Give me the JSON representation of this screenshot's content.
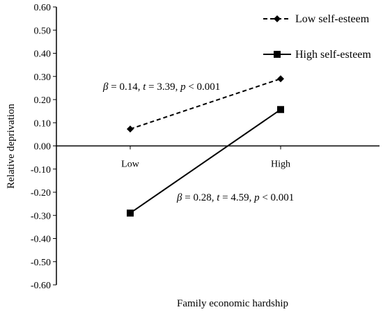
{
  "chart_data": {
    "type": "line",
    "title": "",
    "xlabel": "Family economic hardship",
    "ylabel": "Relative deprivation",
    "categories": [
      "Low",
      "High"
    ],
    "ylim": [
      -0.6,
      0.6
    ],
    "yticks": [
      "0.60",
      "0.50",
      "0.40",
      "0.30",
      "0.20",
      "0.10",
      "0.00",
      "-0.10",
      "-0.20",
      "-0.30",
      "-0.40",
      "-0.50",
      "-0.60"
    ],
    "yticks_values": [
      0.6,
      0.5,
      0.4,
      0.3,
      0.2,
      0.1,
      0.0,
      -0.1,
      -0.2,
      -0.3,
      -0.4,
      -0.5,
      -0.6
    ],
    "grid": false,
    "legend_position": "top-right",
    "series": [
      {
        "name": "Low self-esteem",
        "values": [
          0.073,
          0.29
        ],
        "line_style": "dashed",
        "marker": "diamond",
        "color": "#000000"
      },
      {
        "name": "High self-esteem",
        "values": [
          -0.29,
          0.157
        ],
        "line_style": "solid",
        "marker": "square",
        "color": "#000000"
      }
    ],
    "annotations": [
      {
        "series": "Low self-esteem",
        "parts": [
          [
            "β",
            true
          ],
          [
            " = 0.14, ",
            false
          ],
          [
            "t",
            true
          ],
          [
            " = 3.39, ",
            false
          ],
          [
            "p",
            true
          ],
          [
            " < 0.001",
            false
          ]
        ]
      },
      {
        "series": "High self-esteem",
        "parts": [
          [
            "β",
            true
          ],
          [
            " = 0.28, ",
            false
          ],
          [
            "t",
            true
          ],
          [
            " = 4.59, ",
            false
          ],
          [
            "p",
            true
          ],
          [
            " < 0.001",
            false
          ]
        ]
      }
    ]
  }
}
